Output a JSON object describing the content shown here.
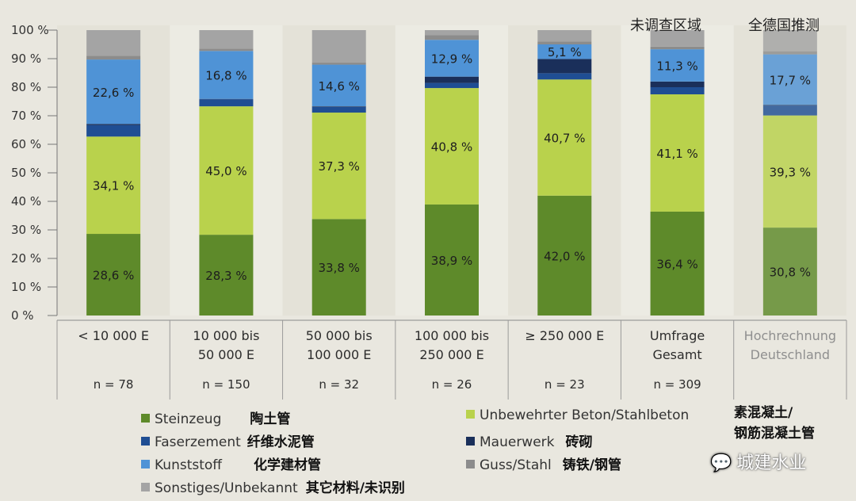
{
  "annotations": {
    "left": "未调查区域",
    "right": "全德国推测"
  },
  "chart_data": {
    "type": "bar",
    "stacked": true,
    "y_ticks": [
      "0 %",
      "10 %",
      "20 %",
      "30 %",
      "40 %",
      "50 %",
      "60 %",
      "70 %",
      "80 %",
      "90 %",
      "100 %"
    ],
    "ylim": [
      0,
      100
    ],
    "categories": [
      {
        "label_lines": [
          "< 10 000 E"
        ],
        "n": "n = 78"
      },
      {
        "label_lines": [
          "10 000 bis",
          "50 000 E"
        ],
        "n": "n = 150"
      },
      {
        "label_lines": [
          "50 000 bis",
          "100 000 E"
        ],
        "n": "n = 32"
      },
      {
        "label_lines": [
          "100 000 bis",
          "250 000 E"
        ],
        "n": "n = 26"
      },
      {
        "label_lines": [
          "≥ 250 000 E"
        ],
        "n": "n = 23"
      },
      {
        "label_lines": [
          "Umfrage",
          "Gesamt"
        ],
        "n": "n = 309"
      },
      {
        "label_lines": [
          "Hochrechnung",
          "Deutschland"
        ],
        "n": ""
      }
    ],
    "series": [
      {
        "name": "Steinzeug",
        "color": "#5e8a2a",
        "values": [
          28.6,
          28.3,
          33.8,
          38.9,
          42.0,
          36.4,
          30.8
        ],
        "labels": [
          "28,6 %",
          "28,3 %",
          "33,8 %",
          "38,9 %",
          "42,0 %",
          "36,4 %",
          "30,8 %"
        ]
      },
      {
        "name": "Unbewehrter Beton/Stahlbeton",
        "color": "#b9d24c",
        "values": [
          34.1,
          45.0,
          37.3,
          40.8,
          40.7,
          41.1,
          39.3
        ],
        "labels": [
          "34,1 %",
          "45,0 %",
          "37,3 %",
          "40,8 %",
          "40,7 %",
          "41,1 %",
          "39,3 %"
        ]
      },
      {
        "name": "Faserzement",
        "color": "#1f4e93",
        "values": [
          4.0,
          2.5,
          2.0,
          1.8,
          2.2,
          2.5,
          3.5
        ],
        "labels": [
          "",
          "",
          "",
          "",
          "",
          "",
          ""
        ]
      },
      {
        "name": "Mauerwerk",
        "color": "#1a2f5a",
        "values": [
          0.4,
          0.1,
          0.2,
          2.2,
          5.0,
          2.0,
          0.2
        ],
        "labels": [
          "",
          "",
          "",
          "",
          "",
          "",
          ""
        ]
      },
      {
        "name": "Kunststoff",
        "color": "#4f93d6",
        "values": [
          22.6,
          16.8,
          14.6,
          12.9,
          5.1,
          11.3,
          17.7
        ],
        "labels": [
          "22,6 %",
          "16,8 %",
          "14,6 %",
          "12,9 %",
          "5,1 %",
          "11,3 %",
          "17,7 %"
        ]
      },
      {
        "name": "Guss/Stahl",
        "color": "#8c8c8c",
        "values": [
          1.3,
          0.8,
          0.7,
          1.6,
          1.0,
          0.9,
          1.1
        ],
        "labels": [
          "",
          "",
          "",
          "",
          "",
          "",
          ""
        ]
      },
      {
        "name": "Sonstiges/Unbekannt",
        "color": "#a4a4a4",
        "values": [
          9.0,
          6.5,
          11.4,
          1.8,
          4.0,
          5.8,
          7.4
        ],
        "labels": [
          "",
          "",
          "",
          "",
          "",
          "",
          ""
        ]
      }
    ]
  },
  "legend": [
    {
      "name": "Steinzeug",
      "cn": "陶土管",
      "color": "#5e8a2a"
    },
    {
      "name": "Faserzement",
      "cn": "纤维水泥管",
      "color": "#1f4e93"
    },
    {
      "name": "Kunststoff",
      "cn": "化学建材管",
      "color": "#4f93d6"
    },
    {
      "name": "Sonstiges/Unbekannt",
      "cn": "其它材料/未识别",
      "color": "#a4a4a4"
    },
    {
      "name": "Unbewehrter Beton/Stahlbeton",
      "cn_line1": "素混凝土/",
      "cn_line2": "钢筋混凝土管",
      "color": "#b9d24c"
    },
    {
      "name": "Mauerwerk",
      "cn": "砖砌",
      "color": "#1a2f5a"
    },
    {
      "name": "Guss/Stahl",
      "cn": "铸铁/钢管",
      "color": "#8c8c8c"
    }
  ],
  "watermark": {
    "icon": "wechat-icon",
    "text": "城建水业"
  }
}
